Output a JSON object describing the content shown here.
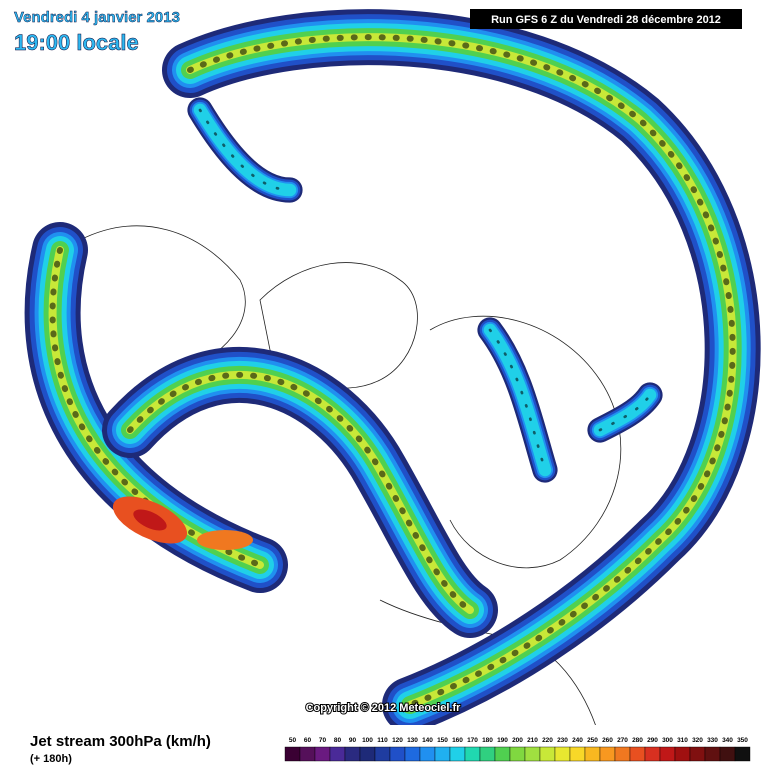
{
  "header": {
    "date": "Vendredi 4 janvier 2013",
    "time": "19:00 locale",
    "run": "Run GFS 6 Z du Vendredi 28 décembre 2012"
  },
  "footer": {
    "title": "Jet stream 300hPa (km/h)",
    "lead": "(+ 180h)",
    "copyright": "Copyright © 2012 Meteociel.fr"
  },
  "colorbar": {
    "labels": [
      50,
      60,
      70,
      80,
      90,
      100,
      110,
      120,
      130,
      140,
      150,
      160,
      170,
      180,
      190,
      200,
      210,
      220,
      230,
      240,
      250,
      260,
      270,
      280,
      290,
      300,
      310,
      320,
      330,
      340,
      350
    ],
    "colors": [
      "#3a0033",
      "#55105a",
      "#6a1a80",
      "#4a2a98",
      "#2a2a80",
      "#1e2a78",
      "#1f3ca0",
      "#2050c8",
      "#1e6ae0",
      "#2090f0",
      "#20b0f0",
      "#20d0e8",
      "#20d8b0",
      "#30d080",
      "#50d050",
      "#80d840",
      "#a0e040",
      "#c8e838",
      "#e8e830",
      "#f8d828",
      "#f8b820",
      "#f89820",
      "#f07820",
      "#e85020",
      "#d83020",
      "#c01818",
      "#a01010",
      "#801010",
      "#601010",
      "#401010",
      "#101010"
    ]
  }
}
